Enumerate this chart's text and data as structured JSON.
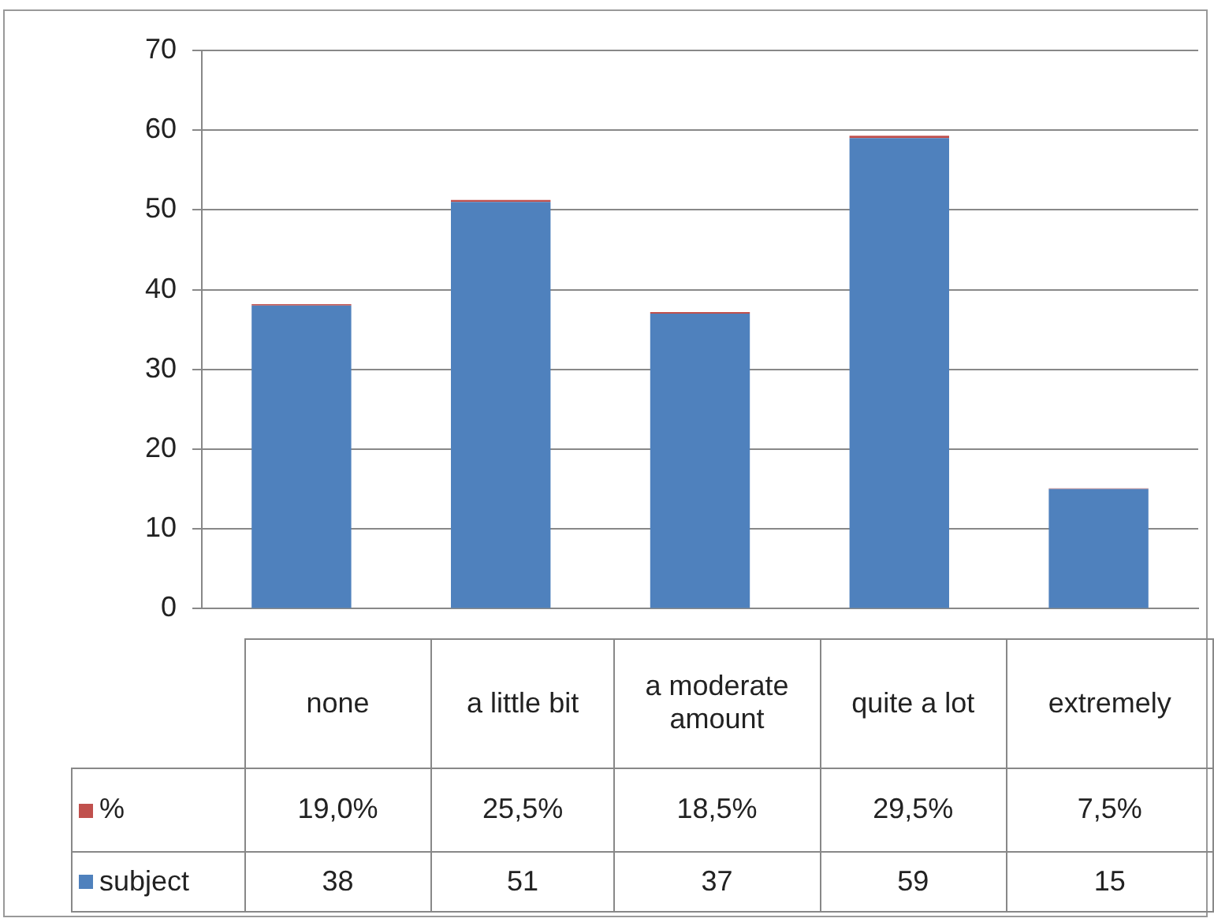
{
  "chart_data": {
    "type": "bar",
    "stacked": true,
    "categories": [
      "none",
      "a little bit",
      "a moderate amount",
      "quite a lot",
      "extremely"
    ],
    "series": [
      {
        "name": "subject",
        "color": "#4f81bd",
        "values": [
          38,
          51,
          37,
          59,
          15
        ],
        "value_labels": [
          "38",
          "51",
          "37",
          "59",
          "15"
        ]
      },
      {
        "name": "%",
        "color": "#c0504d",
        "values": [
          0.19,
          0.255,
          0.185,
          0.295,
          0.075
        ],
        "value_labels": [
          "19,0%",
          "25,5%",
          "18,5%",
          "29,5%",
          "7,5%"
        ]
      }
    ],
    "ylim": [
      0,
      70
    ],
    "yticks": [
      0,
      10,
      20,
      30,
      40,
      50,
      60,
      70
    ],
    "grid": "y",
    "legend": "bottom"
  }
}
